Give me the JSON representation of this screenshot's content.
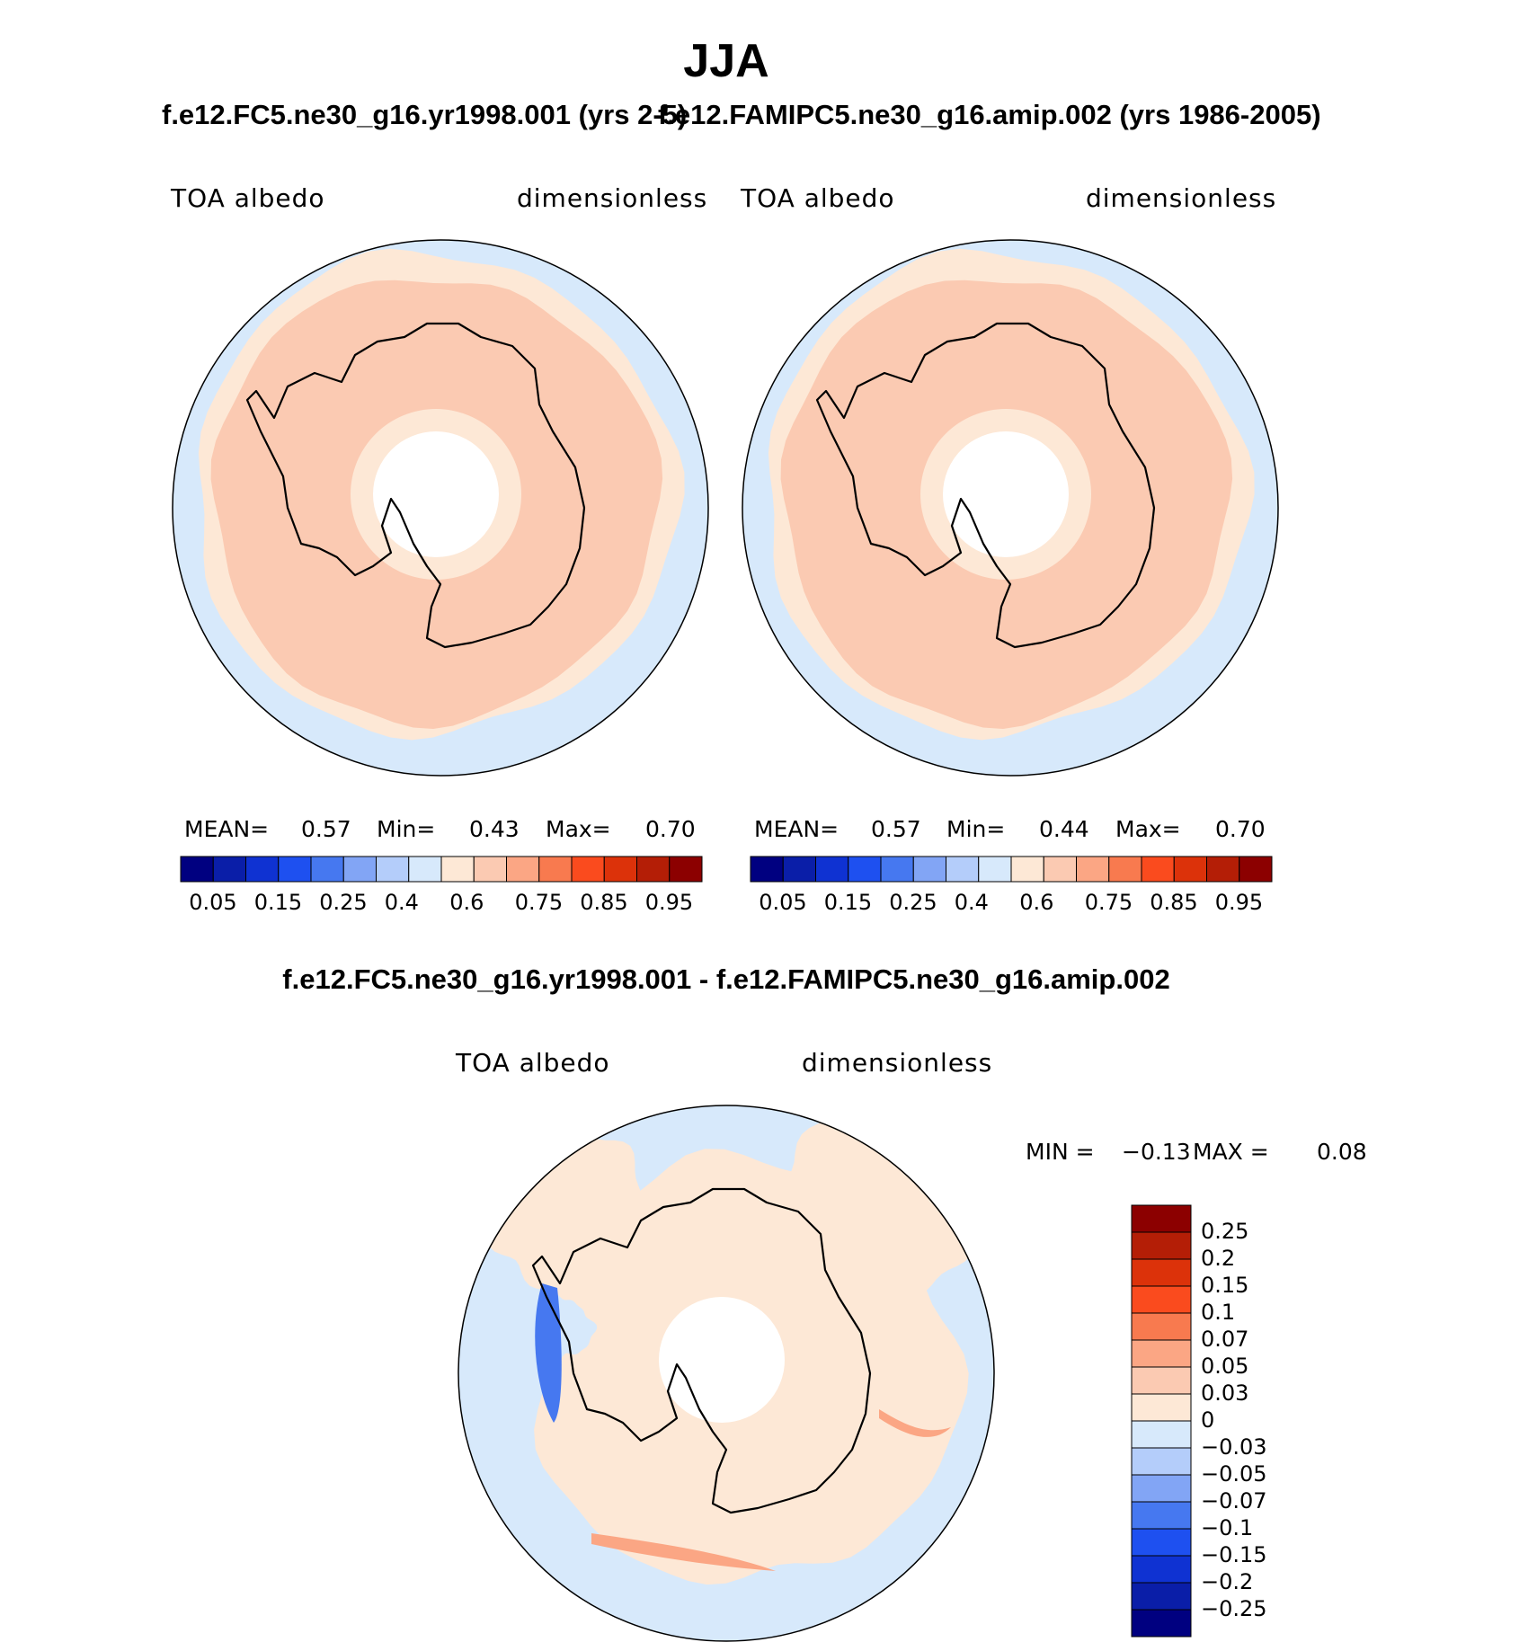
{
  "chart_data": [
    {
      "type": "contour-map",
      "projection": "south-polar-stereographic",
      "title": "f.e12.FC5.ne30_g16.yr1998.001 (yrs 2-5)",
      "variable": "TOA albedo",
      "units": "dimensionless",
      "stats": {
        "mean_label": "MEAN=",
        "mean": "0.57",
        "min_label": "Min=",
        "min": "0.43",
        "max_label": "Max=",
        "max": "0.70"
      },
      "levels": [
        "0.05",
        "0.15",
        "0.25",
        "0.4",
        "0.6",
        "0.75",
        "0.85",
        "0.95"
      ]
    },
    {
      "type": "contour-map",
      "projection": "south-polar-stereographic",
      "title": "f.e12.FAMIPC5.ne30_g16.amip.002 (yrs 1986-2005)",
      "variable": "TOA albedo",
      "units": "dimensionless",
      "stats": {
        "mean_label": "MEAN=",
        "mean": "0.57",
        "min_label": "Min=",
        "min": "0.44",
        "max_label": "Max=",
        "max": "0.70"
      },
      "levels": [
        "0.05",
        "0.15",
        "0.25",
        "0.4",
        "0.6",
        "0.75",
        "0.85",
        "0.95"
      ]
    },
    {
      "type": "contour-map",
      "projection": "south-polar-stereographic",
      "title": "f.e12.FC5.ne30_g16.yr1998.001 - f.e12.FAMIPC5.ne30_g16.amip.002",
      "variable": "TOA albedo",
      "units": "dimensionless",
      "stats": {
        "min_label": "MIN =",
        "min": "−0.13",
        "max_label": "MAX =",
        "max": "0.08"
      },
      "levels": [
        "0.25",
        "0.2",
        "0.15",
        "0.1",
        "0.07",
        "0.05",
        "0.03",
        "0",
        "−0.03",
        "−0.05",
        "−0.07",
        "−0.1",
        "−0.15",
        "−0.2",
        "−0.25"
      ]
    }
  ],
  "season": "JJA",
  "colors": {
    "abs_scale": [
      "#000080",
      "#0a1ea8",
      "#0f32d2",
      "#1e50f0",
      "#4678f0",
      "#82a5f5",
      "#b4cdfa",
      "#d7e9fb",
      "#fde8d6",
      "#fbcab2",
      "#fba684",
      "#f87a4f",
      "#fa4b1e",
      "#dc320a",
      "#b41e06",
      "#8c0000"
    ],
    "diff_scale": [
      "#8c0000",
      "#b41e06",
      "#dc320a",
      "#fa4b1e",
      "#f87a4f",
      "#fba684",
      "#fbcab2",
      "#fde8d6",
      "#d7e9fb",
      "#b4cdfa",
      "#82a5f5",
      "#4678f0",
      "#1e50f0",
      "#0f32d2",
      "#0a1ea8",
      "#000080"
    ],
    "ocean_abs": "#d7e9fb",
    "ring_abs": "#fde8d6",
    "ice_abs": "#fbcab2",
    "diff_pos": "#fde8d6",
    "diff_neg": "#d7e9fb",
    "diff_strong_neg": "#4678f0",
    "diff_strong_pos": "#fba684"
  }
}
